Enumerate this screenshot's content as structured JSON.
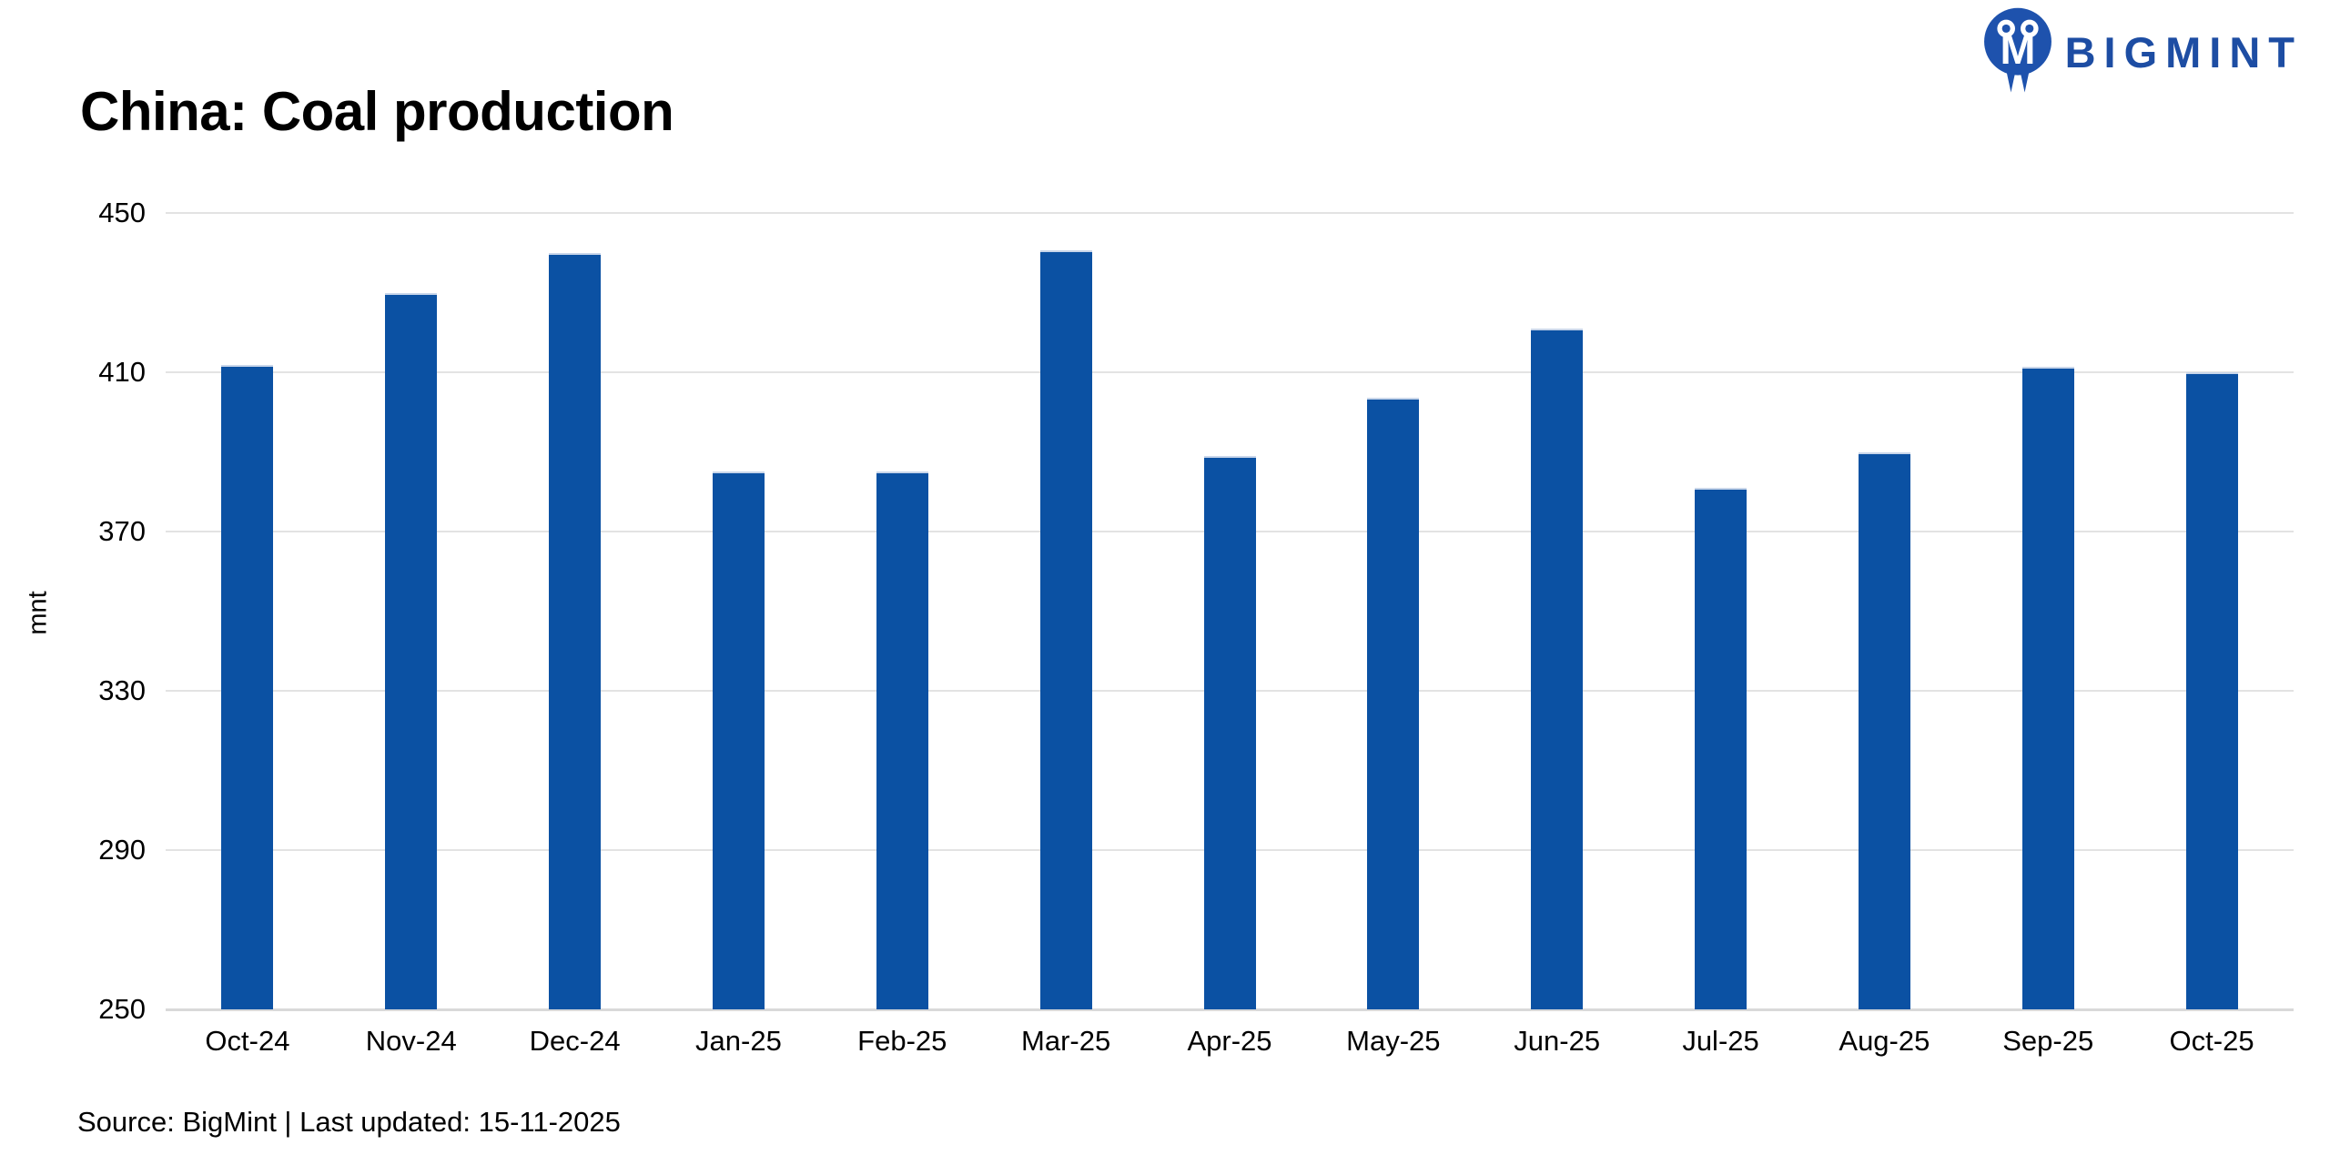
{
  "logo": {
    "text": "BIGMINT",
    "color": "#1d4da3",
    "icon": "bigmint-mark"
  },
  "title": "China: Coal production",
  "chart_data": {
    "type": "bar",
    "categories": [
      "Oct-24",
      "Nov-24",
      "Dec-24",
      "Jan-25",
      "Feb-25",
      "Mar-25",
      "Apr-25",
      "May-25",
      "Jun-25",
      "Jul-25",
      "Aug-25",
      "Sep-25",
      "Oct-25"
    ],
    "values": [
      411.8,
      430.0,
      440.0,
      385.0,
      385.0,
      440.6,
      389.0,
      403.5,
      421.0,
      381.0,
      390.0,
      411.4,
      410.0
    ],
    "title": "China: Coal production",
    "xlabel": "",
    "ylabel": "mnt",
    "ylim": [
      250,
      450
    ],
    "yticks": [
      450,
      410,
      370,
      330,
      290,
      250
    ],
    "grid": true,
    "legend": "none",
    "bar_color": "#0b51a3",
    "gridline_color": "#e3e3e3"
  },
  "footer": {
    "source_line": "Source: BigMint | Last updated: 15-11-2025"
  }
}
